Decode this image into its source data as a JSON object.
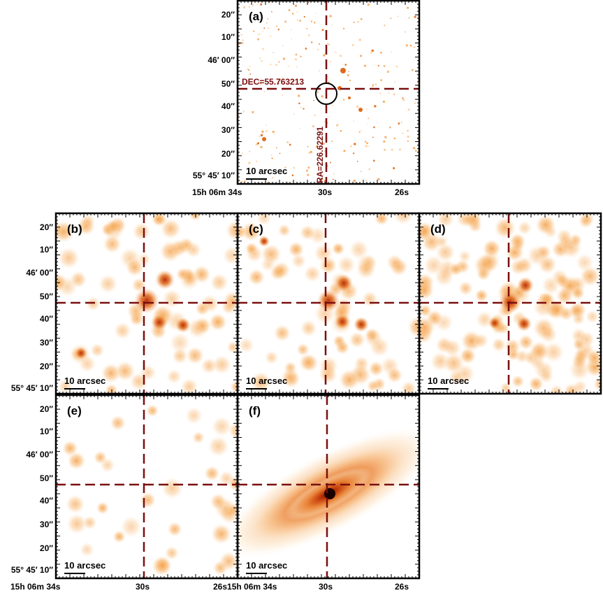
{
  "figure": {
    "colors": {
      "crosshair": "#7a0f0f",
      "frame": "#000000",
      "colormap_low": "#ffffff",
      "colormap_mid": "#f5a64a",
      "colormap_high": "#b52a05",
      "colormap_peak": "#200000"
    },
    "scale_bar_label": "10 arcsec",
    "dec_ticks": [
      "20″",
      "10″",
      "46′ 00″",
      "50″",
      "40″",
      "30″",
      "20″",
      "55° 45′ 10″"
    ],
    "ra_ticks": [
      "15h 06m 34s",
      "30s",
      "26s"
    ],
    "ra_tick_bottom_right_overlap": "26s15h 06m 34s",
    "panels": [
      {
        "id": "a",
        "label": "(a)",
        "show_dec_ticks": true,
        "show_ra_ticks": true,
        "dec_label": "DEC=55.763213",
        "ra_label": "RA=226.62291",
        "marker": "circle"
      },
      {
        "id": "b",
        "label": "(b)",
        "show_dec_ticks": true,
        "show_ra_ticks": false
      },
      {
        "id": "c",
        "label": "(c)",
        "show_dec_ticks": false,
        "show_ra_ticks": false
      },
      {
        "id": "d",
        "label": "(d)",
        "show_dec_ticks": false,
        "show_ra_ticks": false
      },
      {
        "id": "e",
        "label": "(e)",
        "show_dec_ticks": true,
        "show_ra_ticks": true
      },
      {
        "id": "f",
        "label": "(f)",
        "show_dec_ticks": false,
        "show_ra_ticks": true
      }
    ]
  }
}
